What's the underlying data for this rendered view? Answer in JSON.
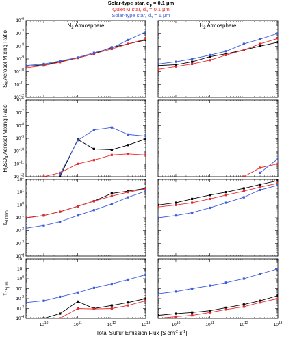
{
  "legend": [
    {
      "label": "Solar-type star, d",
      "sub": "p",
      "rest": " = 0.1 μm",
      "color": "#000000",
      "bold": true
    },
    {
      "label": "Quiet M star, d",
      "sub": "p",
      "rest": " = 0.1 μm",
      "color": "#e8272a",
      "bold": false
    },
    {
      "label": "Solar-type star, d",
      "sub": "p",
      "rest": " = 1 μm",
      "color": "#3b5bdb",
      "bold": false
    }
  ],
  "columns": [
    {
      "main": "N",
      "sub": "2",
      "rest": " Atmosphere"
    },
    {
      "main": "H",
      "sub": "2",
      "rest": " Atmosphere"
    }
  ],
  "row_labels": [
    {
      "pre": "S",
      "sub": "8",
      "rest": " Aerosol Mixing Ratio"
    },
    {
      "pre": "H",
      "sub": "2",
      "mid": "SO",
      "sub2": "4",
      "rest": " Aerosol Mixing Ratio"
    },
    {
      "pre": "τ",
      "sub": "500nm",
      "rest": ""
    },
    {
      "pre": "τ",
      "sub": "7.5μm",
      "rest": ""
    }
  ],
  "xlabel": {
    "pre": "Total Sulfur Emission Flux [S cm",
    "sup1": "-2",
    "mid": " s",
    "sup2": "-1",
    "post": "]"
  },
  "x_tick_labels": [
    {
      "base": "10",
      "exp": "10"
    },
    {
      "base": "10",
      "exp": "11"
    },
    {
      "base": "10",
      "exp": "12"
    },
    {
      "base": "10",
      "exp": "13"
    }
  ],
  "row_tick_labels": [
    [
      "-6",
      "-7",
      "-8",
      "-9",
      "-10",
      "-11",
      "-12"
    ],
    [
      "-6",
      "-7",
      "-8",
      "-9",
      "-10",
      "-11",
      "-12"
    ],
    [
      "2",
      "1",
      "0",
      "-1",
      "-2",
      "-3",
      "-4"
    ],
    [
      "2",
      "1",
      "0",
      "-1",
      "-2",
      "-3",
      "-4"
    ]
  ],
  "colors": {
    "black": "#000000",
    "red": "#e8272a",
    "blue": "#3b5bdb"
  },
  "chart_data": {
    "type": "line",
    "x": [
      3000000000.0,
      10000000000.0,
      30000000000.0,
      100000000000.0,
      300000000000.0,
      1000000000000.0,
      3000000000000.0,
      10000000000000.0
    ],
    "xlim": [
      3000000000.0,
      10000000000000.0
    ],
    "xscale": "log",
    "yscale": "log",
    "panels": [
      {
        "row": 0,
        "col": 0,
        "ylim": [
          1e-12,
          1e-06
        ],
        "series": [
          {
            "color": "black",
            "values": [
              2.5e-10,
              3.5e-10,
              6e-10,
              1.2e-09,
              2.5e-09,
              8e-09,
              1.5e-08,
              3e-08
            ]
          },
          {
            "color": "red",
            "values": [
              2e-10,
              3e-10,
              5.5e-10,
              1.2e-09,
              2.5e-09,
              6e-09,
              1.5e-08,
              3.5e-08
            ]
          },
          {
            "color": "blue",
            "values": [
              3e-10,
              4e-10,
              7e-10,
              1.3e-09,
              3e-09,
              7e-09,
              3e-08,
              1.3e-07
            ]
          }
        ]
      },
      {
        "row": 0,
        "col": 1,
        "ylim": [
          1e-12,
          1e-06
        ],
        "series": [
          {
            "color": "black",
            "values": [
              3e-10,
              3.5e-10,
              6e-10,
              1.5e-09,
              2.5e-09,
              5e-09,
              1e-08,
              2e-08
            ]
          },
          {
            "color": "red",
            "values": [
              1.5e-10,
              2.5e-10,
              4e-10,
              8e-10,
              2e-09,
              5e-09,
              1.5e-08,
              4e-08
            ]
          },
          {
            "color": "blue",
            "values": [
              4e-10,
              6e-10,
              1e-09,
              2e-09,
              4e-09,
              1.5e-08,
              3.5e-08,
              1e-07
            ]
          }
        ]
      },
      {
        "row": 1,
        "col": 0,
        "ylim": [
          1e-12,
          1e-06
        ],
        "series": [
          {
            "color": "black",
            "values": [
              null,
              null,
              1e-12,
              8e-10,
              1.5e-10,
              1.3e-10,
              3e-10,
              9e-10
            ]
          },
          {
            "color": "red",
            "values": [
              null,
              1e-12,
              2e-12,
              1e-11,
              2e-11,
              5e-11,
              6e-11,
              5e-11
            ]
          },
          {
            "color": "blue",
            "values": [
              null,
              null,
              1.5e-12,
              7e-10,
              4.5e-09,
              7e-09,
              2e-09,
              1.5e-09
            ]
          }
        ]
      },
      {
        "row": 1,
        "col": 1,
        "ylim": [
          1e-12,
          1e-06
        ],
        "series": [
          {
            "color": "black",
            "values": [
              null,
              null,
              null,
              null,
              null,
              null,
              null,
              null
            ]
          },
          {
            "color": "red",
            "values": [
              null,
              null,
              null,
              null,
              3e-13,
              1e-12,
              5e-12,
              1e-11
            ]
          },
          {
            "color": "blue",
            "values": [
              null,
              null,
              null,
              null,
              null,
              null,
              2e-12,
              2.5e-11
            ]
          }
        ]
      },
      {
        "row": 2,
        "col": 0,
        "ylim": [
          0.0001,
          100.0
        ],
        "series": [
          {
            "color": "black",
            "values": [
              0.1,
              0.15,
              0.3,
              0.8,
              2,
              8,
              12,
              20
            ]
          },
          {
            "color": "red",
            "values": [
              0.1,
              0.15,
              0.3,
              0.8,
              2,
              5,
              10,
              18
            ]
          },
          {
            "color": "blue",
            "values": [
              0.015,
              0.025,
              0.05,
              0.15,
              0.4,
              1.2,
              4,
              12
            ]
          }
        ]
      },
      {
        "row": 2,
        "col": 1,
        "ylim": [
          0.0001,
          100.0
        ],
        "series": [
          {
            "color": "black",
            "values": [
              1,
              1.5,
              3,
              6,
              10,
              20,
              40,
              80
            ]
          },
          {
            "color": "red",
            "values": [
              0.7,
              1,
              1.5,
              3,
              6,
              12,
              25,
              50
            ]
          },
          {
            "color": "blue",
            "values": [
              0.1,
              0.15,
              0.25,
              0.6,
              1.5,
              4,
              15,
              35
            ]
          }
        ]
      },
      {
        "row": 3,
        "col": 0,
        "ylim": [
          0.0001,
          100.0
        ],
        "series": [
          {
            "color": "black",
            "values": [
              null,
              0.0001,
              0.0003,
              0.005,
              0.001,
              0.002,
              0.004,
              0.01
            ]
          },
          {
            "color": "red",
            "values": [
              null,
              null,
              0.0001,
              0.001,
              0.0009,
              0.001,
              0.002,
              0.006
            ]
          },
          {
            "color": "blue",
            "values": [
              0.004,
              0.006,
              0.015,
              0.04,
              0.12,
              0.3,
              0.8,
              2.5
            ]
          }
        ]
      },
      {
        "row": 3,
        "col": 1,
        "ylim": [
          0.0001,
          100.0
        ],
        "series": [
          {
            "color": "black",
            "values": [
              0.0002,
              0.0003,
              0.0004,
              0.0006,
              0.0012,
              0.0025,
              0.006,
              0.02
            ]
          },
          {
            "color": "red",
            "values": [
              0.0001,
              0.00015,
              0.0002,
              0.0004,
              0.0008,
              0.0015,
              0.004,
              0.01
            ]
          },
          {
            "color": "blue",
            "values": [
              0.03,
              0.05,
              0.1,
              0.2,
              0.4,
              1,
              3,
              10
            ]
          }
        ]
      }
    ]
  }
}
